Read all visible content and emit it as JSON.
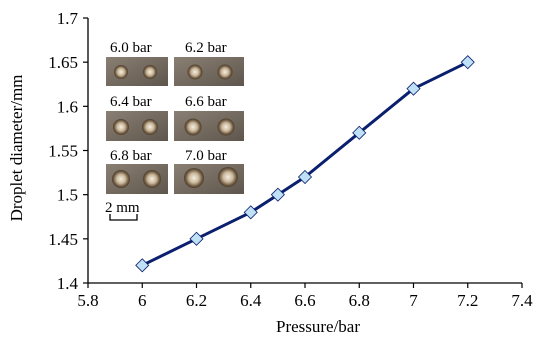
{
  "chart_data": {
    "type": "line",
    "title": "",
    "xlabel": "Pressure/bar",
    "ylabel": "Droplet diameter/mm",
    "xlim": [
      5.8,
      7.4
    ],
    "ylim": [
      1.4,
      1.7
    ],
    "xticks": [
      "5.8",
      "6",
      "6.2",
      "6.4",
      "6.6",
      "6.8",
      "7",
      "7.2",
      "7.4"
    ],
    "yticks": [
      "1.4",
      "1.45",
      "1.5",
      "1.55",
      "1.6",
      "1.65",
      "1.7"
    ],
    "grid": false,
    "legend": "none",
    "series": [
      {
        "x": [
          6.0,
          6.2,
          6.4,
          6.5,
          6.6,
          6.8,
          7.0,
          7.2
        ],
        "y": [
          1.42,
          1.45,
          1.48,
          1.5,
          1.52,
          1.57,
          1.62,
          1.65
        ],
        "line_color": "#0a1f6e",
        "marker_color": "#bfe0f5",
        "marker": "diamond"
      }
    ],
    "inset": {
      "labels": [
        "6.0 bar",
        "6.2 bar",
        "6.4 bar",
        "6.6 bar",
        "6.8 bar",
        "7.0 bar"
      ],
      "scale_bar_label": "2 mm"
    }
  }
}
